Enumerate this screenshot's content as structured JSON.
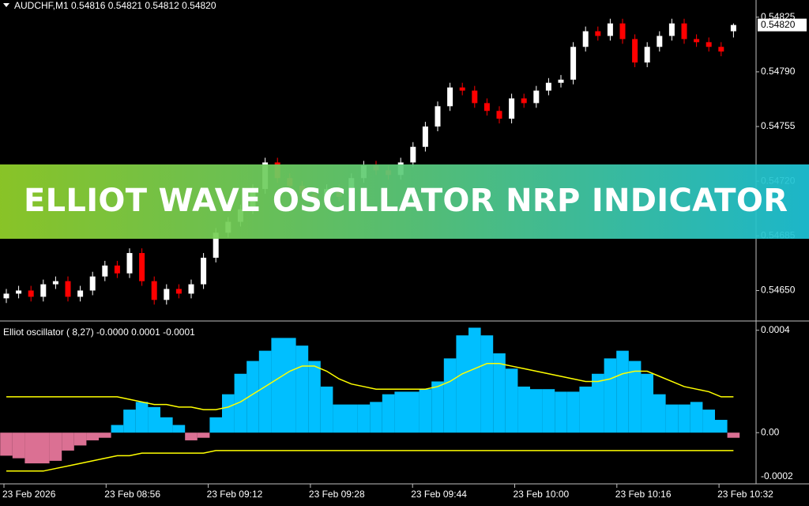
{
  "chart_data": [
    {
      "type": "candlestick",
      "title": "AUDCHF,M1  0.54816 0.54821 0.54812 0.54820",
      "up_color": "#ffffff",
      "down_color": "#ff0000",
      "open": [
        0.54645,
        0.54648,
        0.5465,
        0.54646,
        0.54654,
        0.54656,
        0.54646,
        0.5465,
        0.54659,
        0.54666,
        0.54661,
        0.54674,
        0.54656,
        0.54644,
        0.54651,
        0.54648,
        0.54654,
        0.54671,
        0.54687,
        0.54694,
        0.54702,
        0.54715,
        0.54732,
        0.54722,
        0.54717,
        0.54712,
        0.54708,
        0.54715,
        0.5471,
        0.54722,
        0.5473,
        0.54727,
        0.54724,
        0.54732,
        0.54742,
        0.54755,
        0.54768,
        0.5478,
        0.54778,
        0.5477,
        0.54765,
        0.5476,
        0.54773,
        0.5477,
        0.54778,
        0.54783,
        0.54785,
        0.54806,
        0.54816,
        0.54813,
        0.54821,
        0.54811,
        0.54796,
        0.54806,
        0.54813,
        0.54821,
        0.54811,
        0.54809,
        0.54806,
        0.54816
      ],
      "high": [
        0.54651,
        0.54653,
        0.54653,
        0.54657,
        0.54659,
        0.54659,
        0.54653,
        0.54662,
        0.54669,
        0.54669,
        0.54677,
        0.54677,
        0.54659,
        0.54654,
        0.54654,
        0.54657,
        0.54674,
        0.5469,
        0.54697,
        0.54705,
        0.54718,
        0.54735,
        0.54735,
        0.54725,
        0.5472,
        0.54715,
        0.54718,
        0.54718,
        0.54725,
        0.54733,
        0.54733,
        0.5473,
        0.54735,
        0.54745,
        0.54758,
        0.54771,
        0.54783,
        0.54783,
        0.54781,
        0.54773,
        0.54768,
        0.54776,
        0.54776,
        0.54781,
        0.54786,
        0.54788,
        0.54809,
        0.54819,
        0.54819,
        0.54824,
        0.54824,
        0.54814,
        0.54809,
        0.54816,
        0.54824,
        0.54824,
        0.54814,
        0.54812,
        0.54809,
        0.54821
      ],
      "low": [
        0.54642,
        0.54645,
        0.54643,
        0.54643,
        0.54651,
        0.54643,
        0.54643,
        0.54647,
        0.54656,
        0.54658,
        0.54658,
        0.54653,
        0.54641,
        0.54641,
        0.54645,
        0.54645,
        0.54651,
        0.54668,
        0.54684,
        0.54691,
        0.54699,
        0.54712,
        0.54719,
        0.54714,
        0.54709,
        0.54705,
        0.54705,
        0.54707,
        0.54707,
        0.54719,
        0.54724,
        0.54721,
        0.54721,
        0.54729,
        0.54739,
        0.54752,
        0.54765,
        0.54775,
        0.54767,
        0.54762,
        0.54757,
        0.54757,
        0.54767,
        0.54767,
        0.54775,
        0.5478,
        0.54782,
        0.54803,
        0.5481,
        0.5481,
        0.54808,
        0.54793,
        0.54793,
        0.54803,
        0.5481,
        0.54808,
        0.54806,
        0.54803,
        0.548,
        0.54812
      ],
      "close": [
        0.54648,
        0.5465,
        0.54646,
        0.54654,
        0.54656,
        0.54646,
        0.5465,
        0.54659,
        0.54666,
        0.54661,
        0.54674,
        0.54656,
        0.54644,
        0.54651,
        0.54648,
        0.54654,
        0.54671,
        0.54687,
        0.54694,
        0.54702,
        0.54715,
        0.54732,
        0.54722,
        0.54717,
        0.54712,
        0.54708,
        0.54715,
        0.5471,
        0.54722,
        0.5473,
        0.54727,
        0.54724,
        0.54732,
        0.54742,
        0.54755,
        0.54768,
        0.5478,
        0.54778,
        0.5477,
        0.54765,
        0.5476,
        0.54773,
        0.5477,
        0.54778,
        0.54783,
        0.54785,
        0.54806,
        0.54816,
        0.54813,
        0.54821,
        0.54811,
        0.54796,
        0.54806,
        0.54813,
        0.54821,
        0.54811,
        0.54809,
        0.54806,
        0.54803,
        0.5482
      ],
      "ylim": [
        0.54631,
        0.54836
      ],
      "yticks": [
        {
          "value": 0.5465,
          "label": "0.54650"
        },
        0.54685,
        {
          "value": 0.5472,
          "label": "0.54720"
        },
        0.54755,
        {
          "value": 0.5479,
          "label": "0.54790"
        },
        0.54825
      ],
      "last_price": {
        "value": 0.5482,
        "label": "0.54820"
      }
    },
    {
      "type": "oscillator",
      "title": "Elliot oscillator ( 8,27) -0.0000 0.0001 -0.0001",
      "positive_color": "#00bfff",
      "negative_color": "#db7093",
      "values": [
        -9e-05,
        -0.0001,
        -0.00012,
        -0.00012,
        -0.00011,
        -7e-05,
        -5e-05,
        -3e-05,
        -2e-05,
        3e-05,
        9e-05,
        0.00012,
        0.0001,
        6e-05,
        3e-05,
        -3e-05,
        -2e-05,
        6e-05,
        0.00015,
        0.00023,
        0.00028,
        0.00032,
        0.00037,
        0.00037,
        0.00034,
        0.00028,
        0.00018,
        0.00011,
        0.00011,
        0.00011,
        0.00012,
        0.00015,
        0.00016,
        0.00016,
        0.00017,
        0.0002,
        0.00029,
        0.00038,
        0.00041,
        0.00038,
        0.00031,
        0.00025,
        0.00018,
        0.00017,
        0.00017,
        0.00016,
        0.00016,
        0.00018,
        0.00023,
        0.00029,
        0.00032,
        0.00028,
        0.00023,
        0.00015,
        0.00011,
        0.00011,
        0.00012,
        9e-05,
        5e-05,
        -2e-05
      ],
      "series": [
        {
          "color": "#ffff00",
          "values": [
            0.00014,
            0.00014,
            0.00014,
            0.00014,
            0.00014,
            0.00014,
            0.00014,
            0.00014,
            0.00014,
            0.00014,
            0.00013,
            0.00012,
            0.00011,
            0.00011,
            0.0001,
            0.0001,
            9e-05,
            9e-05,
            0.0001,
            0.00012,
            0.00015,
            0.00018,
            0.00021,
            0.00024,
            0.00026,
            0.00026,
            0.00024,
            0.00021,
            0.00019,
            0.00018,
            0.00017,
            0.00017,
            0.00017,
            0.00017,
            0.00017,
            0.00018,
            0.0002,
            0.00023,
            0.00025,
            0.00027,
            0.00027,
            0.00026,
            0.00025,
            0.00024,
            0.00023,
            0.00022,
            0.00021,
            0.0002,
            0.0002,
            0.00021,
            0.00023,
            0.00024,
            0.00024,
            0.00022,
            0.0002,
            0.00018,
            0.00017,
            0.00016,
            0.00014,
            0.00014
          ]
        },
        {
          "color": "#ffff00",
          "values": [
            -0.00015,
            -0.00015,
            -0.00015,
            -0.00015,
            -0.00014,
            -0.00013,
            -0.00012,
            -0.00011,
            -0.0001,
            -9e-05,
            -9e-05,
            -8e-05,
            -8e-05,
            -8e-05,
            -8e-05,
            -8e-05,
            -8e-05,
            -7e-05,
            -7e-05,
            -7e-05,
            -7e-05,
            -7e-05,
            -7e-05,
            -7e-05,
            -7e-05,
            -7e-05,
            -7e-05,
            -7e-05,
            -7e-05,
            -7e-05,
            -7e-05,
            -7e-05,
            -7e-05,
            -7e-05,
            -7e-05,
            -7e-05,
            -7e-05,
            -7e-05,
            -7e-05,
            -7e-05,
            -7e-05,
            -7e-05,
            -7e-05,
            -7e-05,
            -7e-05,
            -7e-05,
            -7e-05,
            -7e-05,
            -7e-05,
            -7e-05,
            -7e-05,
            -7e-05,
            -7e-05,
            -7e-05,
            -7e-05,
            -7e-05,
            -7e-05,
            -7e-05,
            -7e-05,
            -7e-05
          ]
        }
      ],
      "ylim": [
        -0.0002,
        0.00043
      ],
      "yticks": [
        {
          "value": -0.0002,
          "label": "-0.0002"
        },
        {
          "value": 0,
          "label": "0.00"
        },
        0.0004
      ],
      "x_labels": [
        "23 Feb 2026",
        "23 Feb 08:56",
        "23 Feb 09:12",
        "23 Feb 09:28",
        "23 Feb 09:44",
        "23 Feb 10:00",
        "23 Feb 10:16",
        "23 Feb 10:32"
      ]
    }
  ],
  "banner": "ELLIOT WAVE OSCILLATOR NRP INDICATOR"
}
